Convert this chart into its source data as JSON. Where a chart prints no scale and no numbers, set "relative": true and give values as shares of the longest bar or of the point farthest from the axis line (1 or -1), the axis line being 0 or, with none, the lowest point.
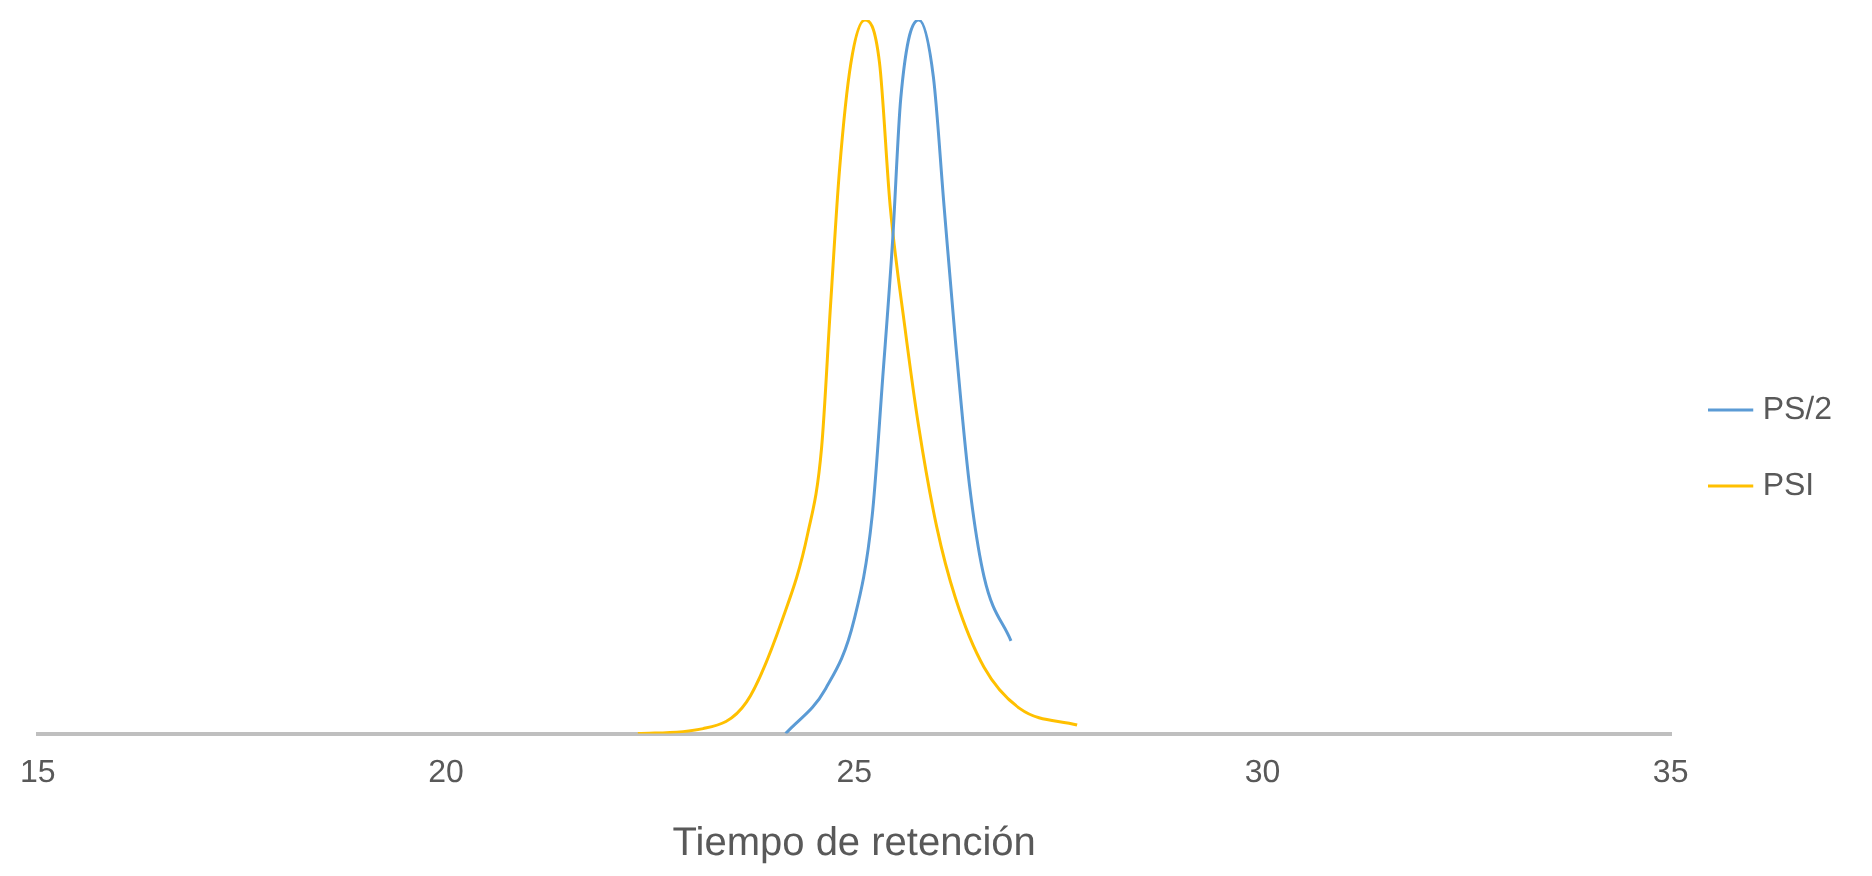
{
  "chart_data": {
    "type": "line",
    "relative": true,
    "xlabel": "Tiempo de retención",
    "xlim": [
      15,
      35
    ],
    "xticks": [
      15,
      20,
      25,
      30,
      35
    ],
    "grid": false,
    "legend": "right",
    "marker": "none",
    "line_style": "solid",
    "series": [
      {
        "name": "PS/2",
        "color": "#5b9bd5",
        "x": [
          24.16,
          24.65,
          25.0,
          25.22,
          25.35,
          25.47,
          25.57,
          25.79,
          25.97,
          26.1,
          26.24,
          26.41,
          26.59,
          26.92
        ],
        "values": [
          0,
          0.063,
          0.16,
          0.305,
          0.5,
          0.69,
          0.89,
          1,
          0.92,
          0.74,
          0.55,
          0.35,
          0.22,
          0.13
        ]
      },
      {
        "name": "PSI",
        "color": "#ffc000",
        "x": [
          22.35,
          23.15,
          23.68,
          24.12,
          24.43,
          24.6,
          24.71,
          24.82,
          24.96,
          25.13,
          25.31,
          25.44,
          25.62,
          25.79,
          26.01,
          26.24,
          26.59,
          27.03,
          27.73
        ],
        "values": [
          0,
          0.007,
          0.044,
          0.16,
          0.28,
          0.4,
          0.6,
          0.79,
          0.94,
          1,
          0.94,
          0.74,
          0.57,
          0.43,
          0.29,
          0.19,
          0.093,
          0.035,
          0.012
        ]
      }
    ]
  }
}
